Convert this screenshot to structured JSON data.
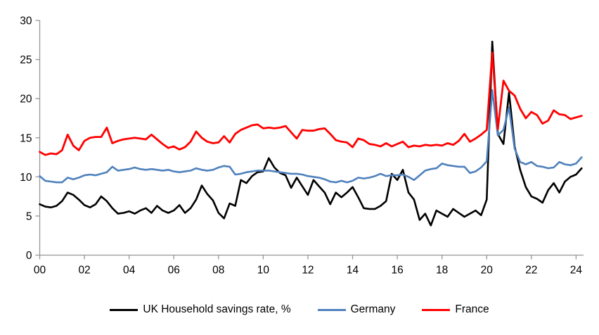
{
  "chart_data": {
    "type": "line",
    "title": "",
    "xlabel": "",
    "ylabel": "",
    "x_start": "2000 Q1",
    "x_frequency": "quarterly",
    "x_tick_labels": [
      "00",
      "02",
      "04",
      "06",
      "08",
      "10",
      "12",
      "14",
      "16",
      "18",
      "20",
      "22",
      "24"
    ],
    "y_ticks": [
      0,
      5,
      10,
      15,
      20,
      25,
      30
    ],
    "ylim": [
      0,
      30
    ],
    "grid": "off",
    "legend_position": "bottom",
    "axis_color": "#969696",
    "text_color": "#000000",
    "series": [
      {
        "name": "UK Household savings rate, %",
        "color": "#000000",
        "values": [
          6.5,
          6.2,
          6.1,
          6.3,
          6.9,
          8.0,
          7.7,
          7.1,
          6.4,
          6.1,
          6.5,
          7.5,
          6.9,
          6.0,
          5.3,
          5.4,
          5.6,
          5.3,
          5.7,
          6.0,
          5.4,
          6.3,
          5.7,
          5.4,
          5.7,
          6.4,
          5.4,
          6.0,
          7.1,
          8.9,
          7.8,
          7.0,
          5.4,
          4.7,
          6.6,
          6.3,
          9.6,
          9.2,
          10.1,
          10.6,
          10.7,
          12.4,
          11.2,
          10.5,
          10.2,
          8.6,
          9.9,
          8.8,
          7.7,
          9.6,
          8.8,
          8.0,
          6.5,
          8.0,
          7.4,
          8.0,
          8.7,
          7.4,
          6.0,
          5.9,
          5.9,
          6.3,
          6.9,
          10.4,
          9.6,
          10.9,
          8.0,
          7.1,
          4.5,
          5.3,
          3.8,
          5.7,
          5.3,
          4.9,
          5.9,
          5.4,
          4.9,
          5.3,
          5.7,
          5.1,
          7.1,
          27.3,
          15.5,
          14.2,
          20.8,
          13.9,
          10.9,
          8.7,
          7.5,
          7.2,
          6.7,
          8.3,
          9.2,
          8.0,
          9.4,
          10.0,
          10.3,
          11.1
        ]
      },
      {
        "name": "Germany",
        "color": "#4F81BD",
        "values": [
          10.1,
          9.5,
          9.4,
          9.3,
          9.3,
          9.9,
          9.7,
          9.9,
          10.2,
          10.3,
          10.2,
          10.4,
          10.6,
          11.3,
          10.8,
          10.9,
          11.0,
          11.2,
          11.0,
          10.9,
          11.0,
          10.9,
          10.8,
          10.9,
          10.7,
          10.6,
          10.7,
          10.8,
          11.1,
          10.9,
          10.8,
          10.9,
          11.2,
          11.4,
          11.3,
          10.3,
          10.4,
          10.6,
          10.7,
          10.8,
          10.8,
          10.8,
          10.7,
          10.6,
          10.5,
          10.4,
          10.4,
          10.3,
          10.1,
          10.0,
          9.9,
          9.7,
          9.4,
          9.3,
          9.5,
          9.3,
          9.5,
          9.9,
          9.8,
          9.9,
          10.1,
          10.4,
          10.1,
          10.2,
          10.2,
          10.3,
          10.0,
          9.6,
          10.2,
          10.8,
          11.0,
          11.1,
          11.7,
          11.5,
          11.4,
          11.3,
          11.3,
          10.5,
          10.7,
          11.2,
          12.0,
          21.1,
          15.3,
          16.0,
          18.9,
          13.6,
          11.9,
          11.6,
          11.9,
          11.4,
          11.3,
          11.1,
          11.2,
          11.9,
          11.6,
          11.5,
          11.7,
          12.5
        ]
      },
      {
        "name": "France",
        "color": "#FF0000",
        "values": [
          13.2,
          12.8,
          13.0,
          12.9,
          13.4,
          15.4,
          14.0,
          13.4,
          14.6,
          15.0,
          15.1,
          15.1,
          16.3,
          14.3,
          14.6,
          14.8,
          14.9,
          15.0,
          14.9,
          14.8,
          15.4,
          14.8,
          14.2,
          13.7,
          13.9,
          13.5,
          13.8,
          14.5,
          15.8,
          15.0,
          14.5,
          14.3,
          14.4,
          15.2,
          14.4,
          15.5,
          16.0,
          16.3,
          16.6,
          16.7,
          16.2,
          16.3,
          16.2,
          16.3,
          16.5,
          15.7,
          14.9,
          16.0,
          15.9,
          15.9,
          16.1,
          16.2,
          15.5,
          14.7,
          14.5,
          14.4,
          13.8,
          14.9,
          14.7,
          14.2,
          14.1,
          13.9,
          14.3,
          13.9,
          14.2,
          14.5,
          13.8,
          14.0,
          13.9,
          14.1,
          14.0,
          14.1,
          14.0,
          14.3,
          14.1,
          14.6,
          15.5,
          14.5,
          14.9,
          15.4,
          16.0,
          25.9,
          16.1,
          22.3,
          21.0,
          20.4,
          18.7,
          17.5,
          18.3,
          17.9,
          16.8,
          17.2,
          18.5,
          18.0,
          17.9,
          17.4,
          17.6,
          17.8
        ]
      }
    ]
  }
}
